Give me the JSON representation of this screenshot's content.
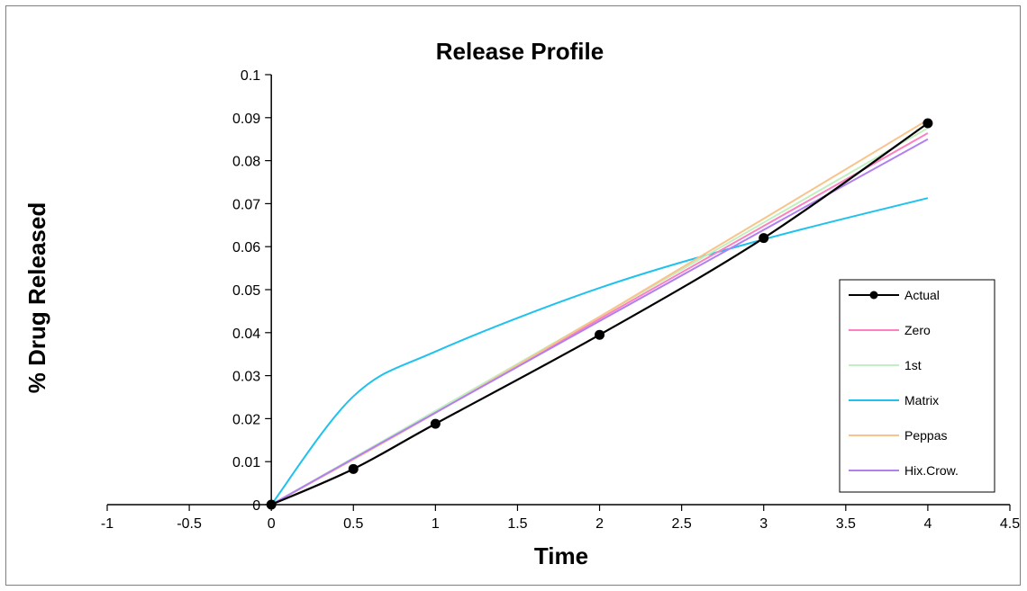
{
  "chart_data": {
    "type": "line",
    "title": "Release Profile",
    "xlabel": "Time",
    "ylabel": "% Drug Released",
    "xlim": [
      -1,
      4.5
    ],
    "ylim": [
      0,
      0.1
    ],
    "x_ticks": [
      "-1",
      "-0.5",
      "0",
      "0.5",
      "1",
      "1.5",
      "2",
      "2.5",
      "3",
      "3.5",
      "4",
      "4.5"
    ],
    "y_ticks": [
      "0",
      "0.01",
      "0.02",
      "0.03",
      "0.04",
      "0.05",
      "0.06",
      "0.07",
      "0.08",
      "0.09",
      "0.1"
    ],
    "grid": false,
    "legend_position": "right",
    "series": [
      {
        "name": "Actual",
        "color": "#000000",
        "markers": true,
        "x": [
          0,
          0.5,
          1,
          2,
          3,
          4
        ],
        "y": [
          0,
          0.0083,
          0.0188,
          0.0395,
          0.062,
          0.0887
        ]
      },
      {
        "name": "Zero",
        "color": "#ff80c0",
        "markers": false,
        "x": [
          0,
          0.5,
          1,
          2,
          3,
          4
        ],
        "y": [
          0,
          0.0108,
          0.0216,
          0.0432,
          0.0648,
          0.0864
        ]
      },
      {
        "name": "1st",
        "color": "#c0f0c0",
        "markers": false,
        "x": [
          0,
          0.5,
          1,
          2,
          3,
          4
        ],
        "y": [
          0,
          0.0109,
          0.0218,
          0.0437,
          0.0656,
          0.0876
        ]
      },
      {
        "name": "Matrix",
        "color": "#1fc2ee",
        "markers": false,
        "x": [
          0,
          0.5,
          1,
          2,
          3,
          4
        ],
        "y": [
          0,
          0.0252,
          0.0356,
          0.0504,
          0.0617,
          0.0713
        ]
      },
      {
        "name": "Peppas",
        "color": "#f8c48c",
        "markers": false,
        "x": [
          0,
          0.5,
          1,
          2,
          3,
          4
        ],
        "y": [
          0,
          0.0105,
          0.0213,
          0.0437,
          0.0665,
          0.0895
        ]
      },
      {
        "name": "Hix.Crow.",
        "color": "#b080f0",
        "markers": false,
        "x": [
          0,
          0.5,
          1,
          2,
          3,
          4
        ],
        "y": [
          0,
          0.0107,
          0.0214,
          0.0427,
          0.0639,
          0.085
        ]
      }
    ]
  }
}
